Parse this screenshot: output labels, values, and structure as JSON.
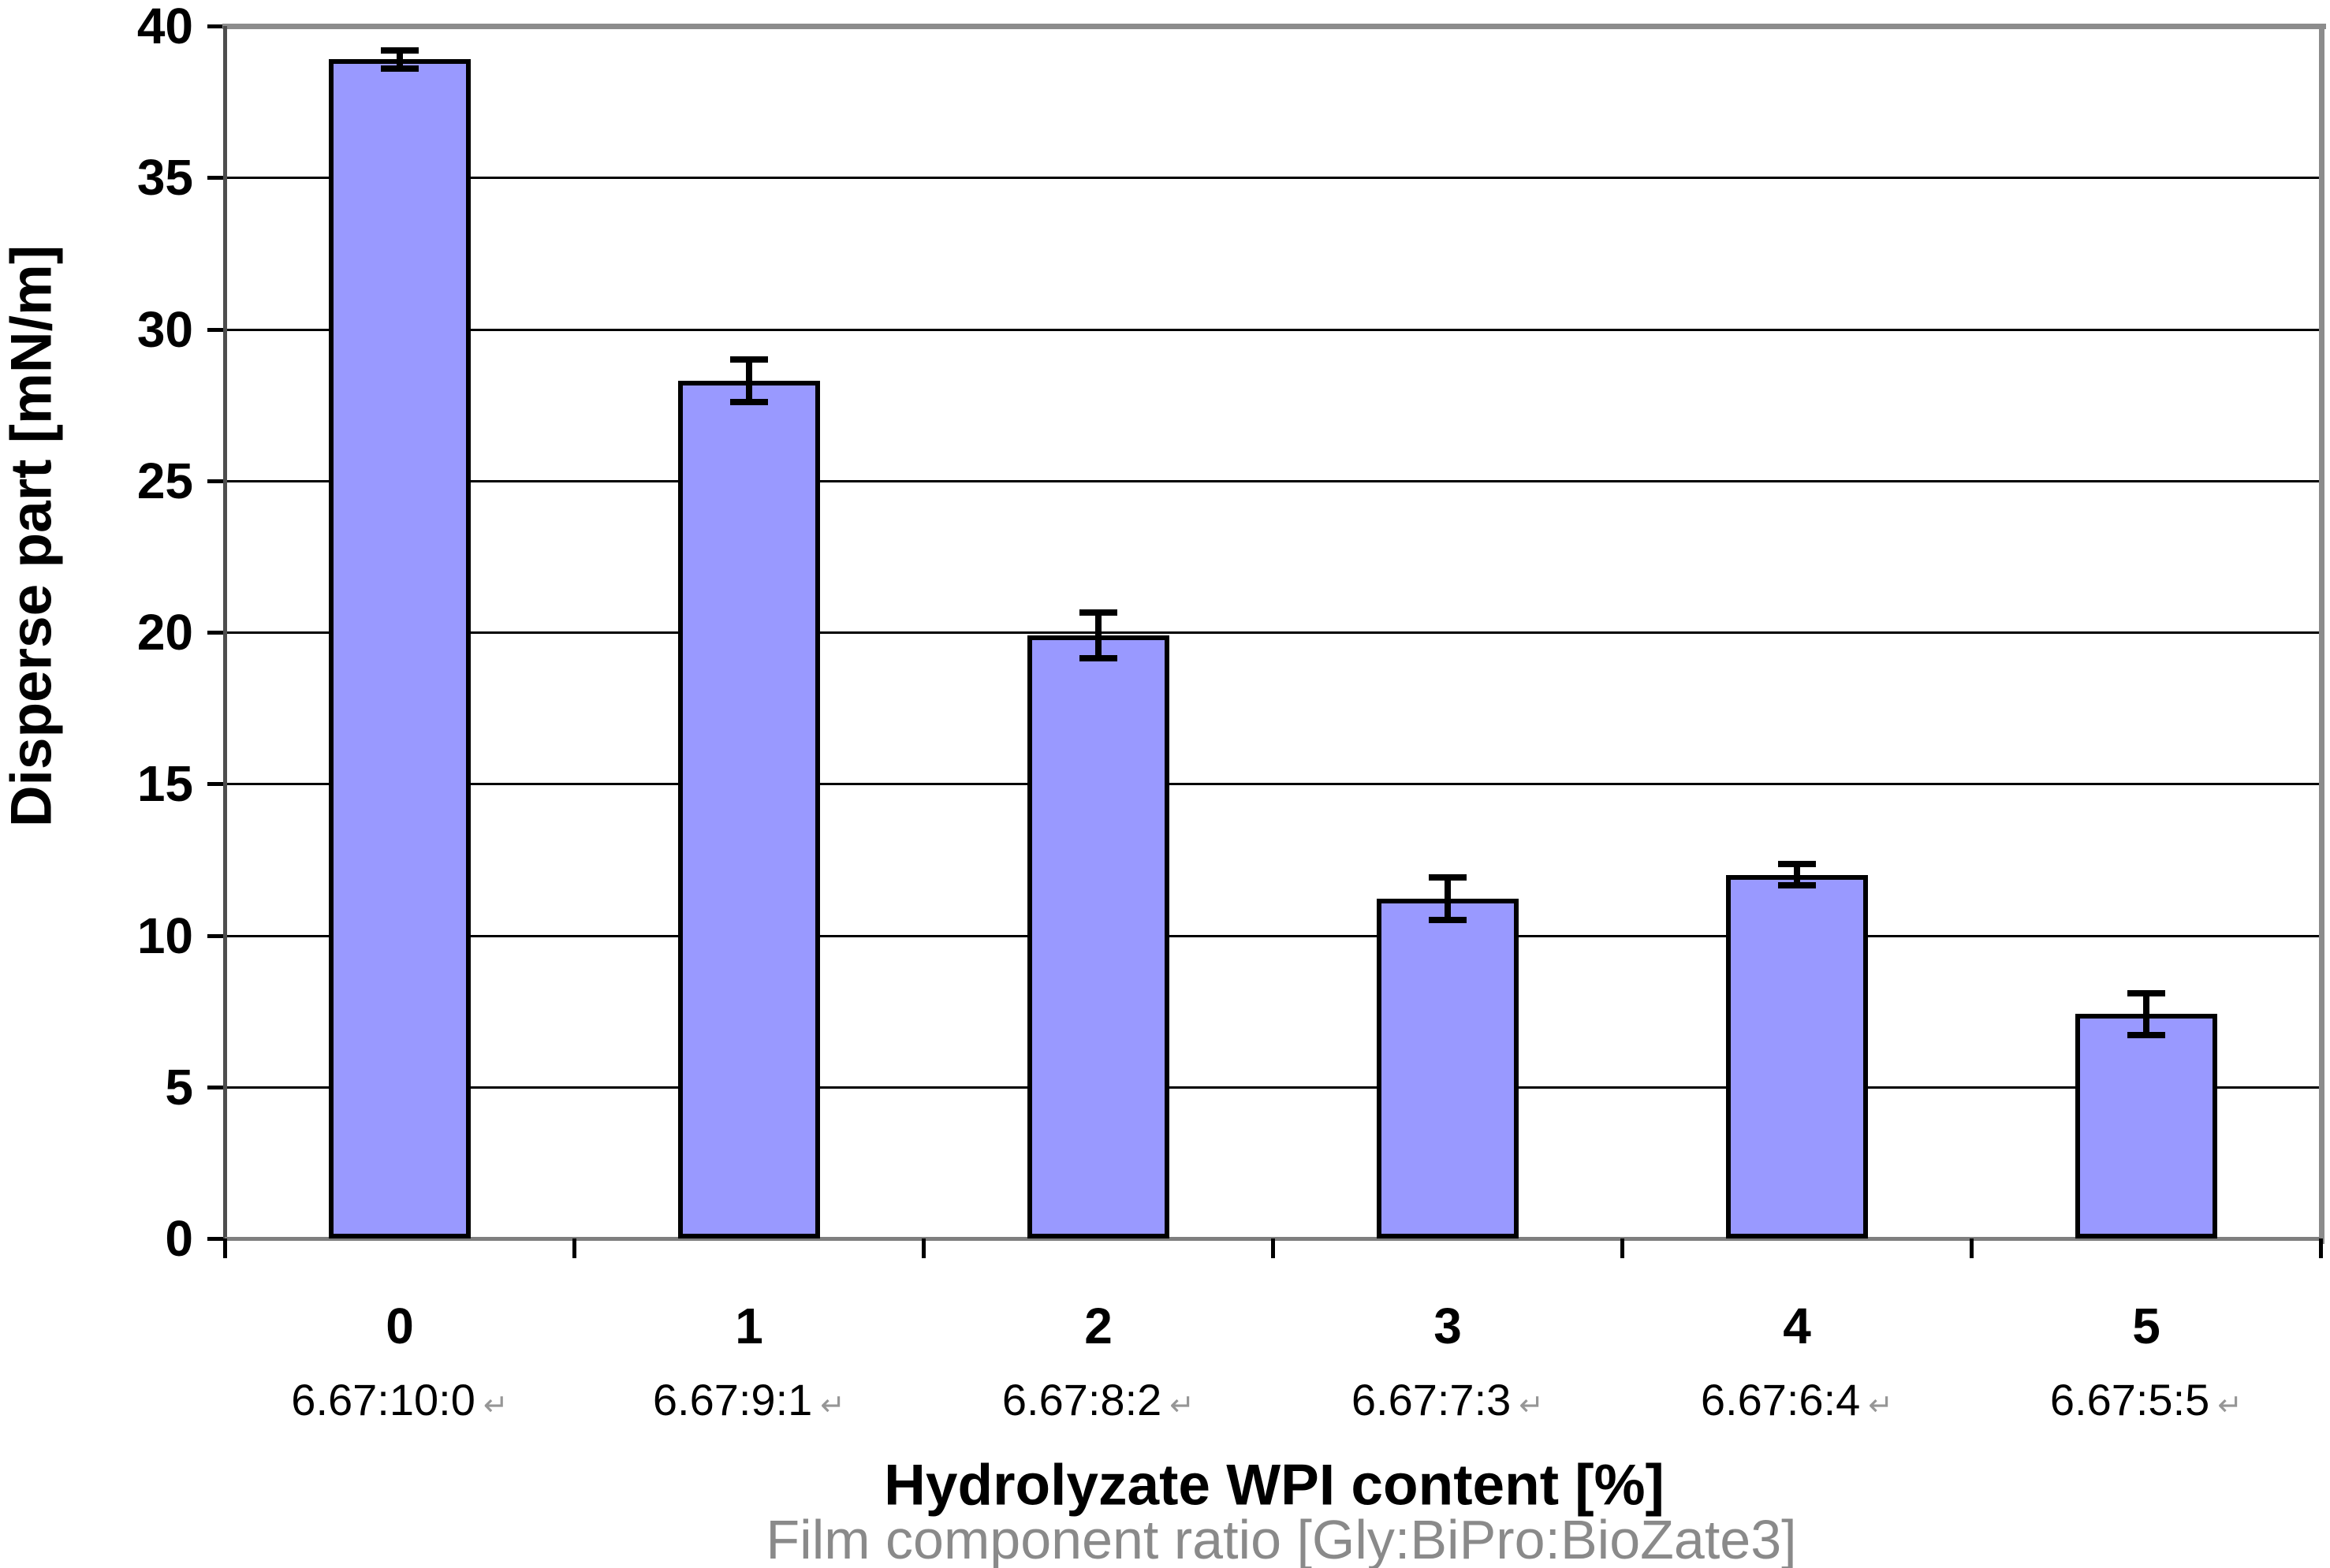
{
  "chart_data": {
    "type": "bar",
    "title": "",
    "categories": [
      "0",
      "1",
      "2",
      "3",
      "4",
      "5"
    ],
    "category_sublabels": [
      "6.67:10:0",
      "6.67:9:1",
      "6.67:8:2",
      "6.67:7:3",
      "6.67:6:4",
      "6.67:5:5"
    ],
    "series": [
      {
        "name": "Disperse part",
        "values": [
          38.9,
          28.3,
          19.9,
          11.2,
          12.0,
          7.4
        ],
        "error_bars": [
          0.3,
          0.7,
          0.75,
          0.7,
          0.35,
          0.7
        ]
      }
    ],
    "xlabel": "Hydrolyzate WPI content [%]",
    "xlabel_secondary": "Film component ratio [Gly:BiPro:BioZate3]",
    "ylabel": "Disperse part [mN/m]",
    "ylim": [
      0,
      40
    ],
    "yticks": [
      0,
      5,
      10,
      15,
      20,
      25,
      30,
      35,
      40
    ],
    "grid": true,
    "legend": false,
    "line_break_mark": "↵",
    "colors": {
      "bar_fill": "#9999FF",
      "bar_border": "#000000",
      "gridline": "#000000",
      "frame": "#8c8c8c",
      "y_axis": "#4d4d4d",
      "x_axis": "#7f7f7f",
      "subtitle_text": "#8a8a8a",
      "return_mark": "#969696"
    }
  }
}
